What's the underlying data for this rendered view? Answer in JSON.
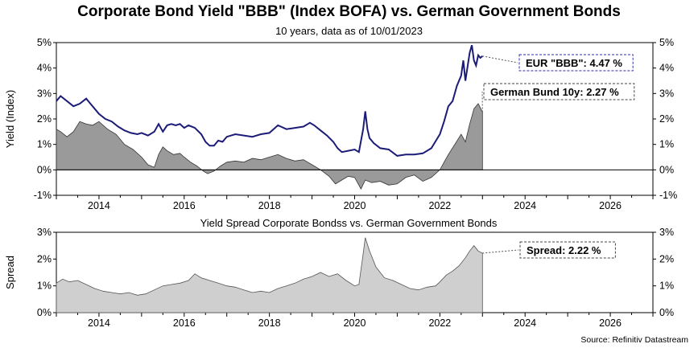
{
  "title": "Corporate Bond Yield \"BBB\" (Index BOFA) vs. German Government Bonds",
  "subtitle": "10 years, data as of 10/01/2023",
  "source": "Source: Refinitiv Datastream",
  "colors": {
    "bbb_line": "#1c1c78",
    "bund_fill": "#9a9a9a",
    "spread_fill": "#cfcfcf",
    "box_border_bbb": "#2b2bb0"
  },
  "chart_data": [
    {
      "type": "line",
      "title": "",
      "ylabel": "Yield (Index)",
      "xlim": [
        2013.0,
        2027.0
      ],
      "ylim": [
        -1,
        5
      ],
      "yticks": [
        -1,
        0,
        1,
        2,
        3,
        4,
        5
      ],
      "ytick_labels": [
        "-1%",
        "0%",
        "1%",
        "2%",
        "3%",
        "4%",
        "5%"
      ],
      "xticks": [
        2014,
        2016,
        2018,
        2020,
        2022,
        2024,
        2026
      ],
      "xtick_labels": [
        "2014",
        "2016",
        "2018",
        "2020",
        "2022",
        "2024",
        "2026"
      ],
      "series": [
        {
          "name": "EUR \"BBB\"",
          "label": "EUR \"BBB\": 4.47 %",
          "x": [
            2013.0,
            2013.1,
            2013.25,
            2013.4,
            2013.55,
            2013.7,
            2013.8,
            2013.9,
            2014.0,
            2014.15,
            2014.3,
            2014.45,
            2014.6,
            2014.75,
            2014.9,
            2015.0,
            2015.15,
            2015.3,
            2015.4,
            2015.5,
            2015.6,
            2015.7,
            2015.8,
            2015.9,
            2016.0,
            2016.1,
            2016.25,
            2016.4,
            2016.5,
            2016.6,
            2016.7,
            2016.8,
            2016.9,
            2017.0,
            2017.2,
            2017.4,
            2017.6,
            2017.8,
            2018.0,
            2018.2,
            2018.4,
            2018.6,
            2018.8,
            2018.95,
            2019.05,
            2019.2,
            2019.35,
            2019.5,
            2019.6,
            2019.7,
            2019.85,
            2020.0,
            2020.1,
            2020.2,
            2020.25,
            2020.3,
            2020.35,
            2020.45,
            2020.6,
            2020.8,
            2021.0,
            2021.2,
            2021.4,
            2021.6,
            2021.8,
            2022.0,
            2022.1,
            2022.2,
            2022.3,
            2022.4,
            2022.5,
            2022.55,
            2022.6,
            2022.7,
            2022.75,
            2022.8,
            2022.85,
            2022.9,
            2022.95,
            2023.0
          ],
          "values": [
            2.7,
            2.9,
            2.7,
            2.5,
            2.6,
            2.8,
            2.6,
            2.4,
            2.2,
            2.0,
            1.9,
            1.7,
            1.55,
            1.45,
            1.4,
            1.45,
            1.35,
            1.5,
            1.8,
            1.5,
            1.75,
            1.8,
            1.75,
            1.8,
            1.65,
            1.75,
            1.65,
            1.4,
            1.1,
            0.95,
            0.95,
            1.15,
            1.1,
            1.3,
            1.4,
            1.35,
            1.3,
            1.4,
            1.45,
            1.75,
            1.6,
            1.65,
            1.7,
            1.85,
            1.75,
            1.55,
            1.35,
            1.1,
            0.85,
            0.7,
            0.75,
            0.8,
            0.7,
            1.6,
            2.3,
            1.6,
            1.25,
            1.05,
            0.85,
            0.8,
            0.55,
            0.6,
            0.6,
            0.65,
            0.85,
            1.4,
            1.9,
            2.5,
            2.7,
            3.3,
            3.7,
            4.3,
            3.5,
            4.6,
            4.9,
            4.3,
            4.1,
            4.5,
            4.4,
            4.47
          ]
        },
        {
          "name": "German Bund 10y",
          "label": "German Bund 10y: 2.27 %",
          "x": [
            2013.0,
            2013.1,
            2013.25,
            2013.4,
            2013.55,
            2013.7,
            2013.85,
            2014.0,
            2014.2,
            2014.4,
            2014.6,
            2014.8,
            2015.0,
            2015.15,
            2015.3,
            2015.4,
            2015.5,
            2015.6,
            2015.75,
            2015.9,
            2016.0,
            2016.15,
            2016.3,
            2016.45,
            2016.55,
            2016.7,
            2016.85,
            2017.0,
            2017.2,
            2017.4,
            2017.6,
            2017.8,
            2018.0,
            2018.2,
            2018.4,
            2018.6,
            2018.8,
            2019.0,
            2019.2,
            2019.4,
            2019.55,
            2019.7,
            2019.85,
            2020.0,
            2020.15,
            2020.25,
            2020.4,
            2020.6,
            2020.8,
            2021.0,
            2021.2,
            2021.4,
            2021.6,
            2021.8,
            2022.0,
            2022.1,
            2022.2,
            2022.35,
            2022.5,
            2022.6,
            2022.7,
            2022.75,
            2022.8,
            2022.9,
            2023.0
          ],
          "values": [
            1.6,
            1.5,
            1.3,
            1.5,
            1.9,
            1.8,
            1.75,
            1.9,
            1.6,
            1.4,
            1.0,
            0.8,
            0.5,
            0.2,
            0.1,
            0.6,
            0.9,
            0.75,
            0.6,
            0.65,
            0.5,
            0.3,
            0.15,
            -0.05,
            -0.15,
            -0.05,
            0.15,
            0.3,
            0.35,
            0.3,
            0.45,
            0.4,
            0.5,
            0.6,
            0.45,
            0.35,
            0.4,
            0.2,
            0.0,
            -0.25,
            -0.55,
            -0.4,
            -0.25,
            -0.3,
            -0.75,
            -0.4,
            -0.5,
            -0.45,
            -0.6,
            -0.55,
            -0.3,
            -0.2,
            -0.45,
            -0.3,
            0.0,
            0.3,
            0.6,
            1.0,
            1.4,
            1.1,
            1.8,
            2.1,
            2.4,
            2.6,
            2.27
          ]
        }
      ]
    },
    {
      "type": "area",
      "title": "Yield Spread Corporate Bondss vs. German Government Bonds",
      "ylabel": "Spread",
      "xlim": [
        2013.0,
        2027.0
      ],
      "ylim": [
        0,
        3
      ],
      "yticks": [
        0,
        1,
        2,
        3
      ],
      "ytick_labels": [
        "0%",
        "1%",
        "2%",
        "3%"
      ],
      "xticks": [
        2014,
        2016,
        2018,
        2020,
        2022,
        2024,
        2026
      ],
      "xtick_labels": [
        "2014",
        "2016",
        "2018",
        "2020",
        "2022",
        "2024",
        "2026"
      ],
      "series": [
        {
          "name": "Spread",
          "label": "Spread: 2.22 %",
          "x": [
            2013.0,
            2013.15,
            2013.3,
            2013.5,
            2013.7,
            2013.9,
            2014.1,
            2014.3,
            2014.5,
            2014.7,
            2014.9,
            2015.1,
            2015.3,
            2015.5,
            2015.7,
            2015.9,
            2016.1,
            2016.25,
            2016.4,
            2016.6,
            2016.8,
            2017.0,
            2017.2,
            2017.4,
            2017.6,
            2017.8,
            2018.0,
            2018.2,
            2018.4,
            2018.6,
            2018.8,
            2019.0,
            2019.2,
            2019.4,
            2019.6,
            2019.8,
            2020.0,
            2020.1,
            2020.2,
            2020.25,
            2020.35,
            2020.5,
            2020.7,
            2020.9,
            2021.1,
            2021.3,
            2021.5,
            2021.7,
            2021.9,
            2022.0,
            2022.15,
            2022.3,
            2022.45,
            2022.6,
            2022.7,
            2022.8,
            2022.9,
            2023.0
          ],
          "values": [
            1.1,
            1.25,
            1.15,
            1.2,
            1.05,
            0.9,
            0.8,
            0.75,
            0.7,
            0.75,
            0.65,
            0.7,
            0.85,
            1.0,
            1.05,
            1.1,
            1.2,
            1.45,
            1.3,
            1.2,
            1.1,
            1.0,
            0.95,
            0.85,
            0.75,
            0.8,
            0.75,
            0.9,
            1.0,
            1.1,
            1.25,
            1.35,
            1.5,
            1.35,
            1.45,
            1.2,
            1.0,
            1.05,
            2.2,
            2.8,
            2.3,
            1.7,
            1.3,
            1.2,
            1.05,
            0.9,
            0.85,
            0.95,
            1.0,
            1.15,
            1.4,
            1.55,
            1.75,
            2.05,
            2.3,
            2.5,
            2.3,
            2.22
          ]
        }
      ]
    }
  ]
}
